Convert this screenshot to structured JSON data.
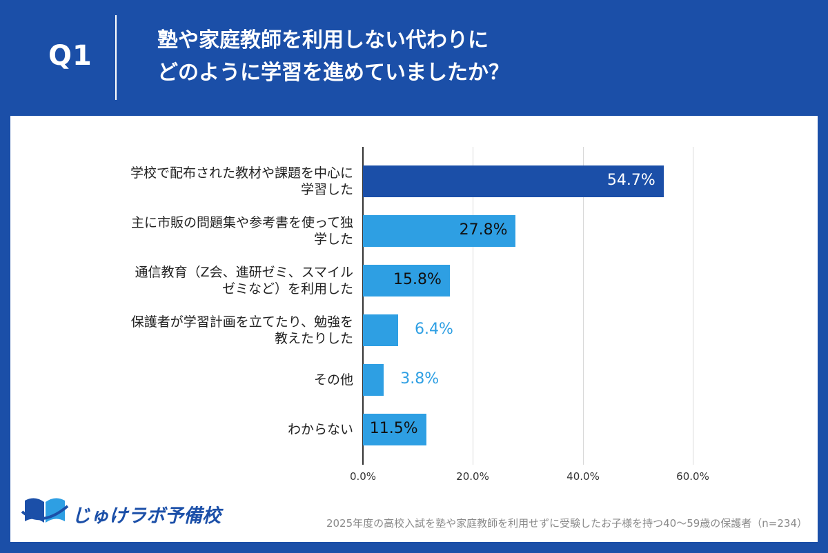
{
  "header": {
    "q_label": "Q1",
    "title_line1": "塾や家庭教師を利用しない代わりに",
    "title_line2": "どのように学習を進めていましたか？"
  },
  "chart_data": {
    "type": "bar",
    "orientation": "horizontal",
    "categories": [
      "学校で配布された教材や課題を中心に\n学習した",
      "主に市販の問題集や参考書を使って独\n学した",
      "通信教育（Z会、進研ゼミ、スマイル\nゼミなど）を利用した",
      "保護者が学習計画を立てたり、勉強を\n教えたりした",
      "その他",
      "わからない"
    ],
    "values": [
      54.7,
      27.8,
      15.8,
      6.4,
      3.8,
      11.5
    ],
    "value_labels": [
      "54.7%",
      "27.8%",
      "15.8%",
      "6.4%",
      "3.8%",
      "11.5%"
    ],
    "xlim": [
      0,
      60
    ],
    "xticks": [
      "0.0%",
      "20.0%",
      "40.0%",
      "60.0%"
    ],
    "grid": true,
    "colors": {
      "highlight": "#1b4fa8",
      "bar": "#2e9fe3",
      "label_inside": "#111111",
      "label_inside_highlight": "#ffffff",
      "label_outside": "#2e9fe3"
    }
  },
  "logo": {
    "text": "じゅけラボ予備校",
    "icon": "book-icon"
  },
  "footnote": "2025年度の高校入試を塾や家庭教師を利用せずに受験したお子様を持つ40～59歳の保護者（n=234）"
}
